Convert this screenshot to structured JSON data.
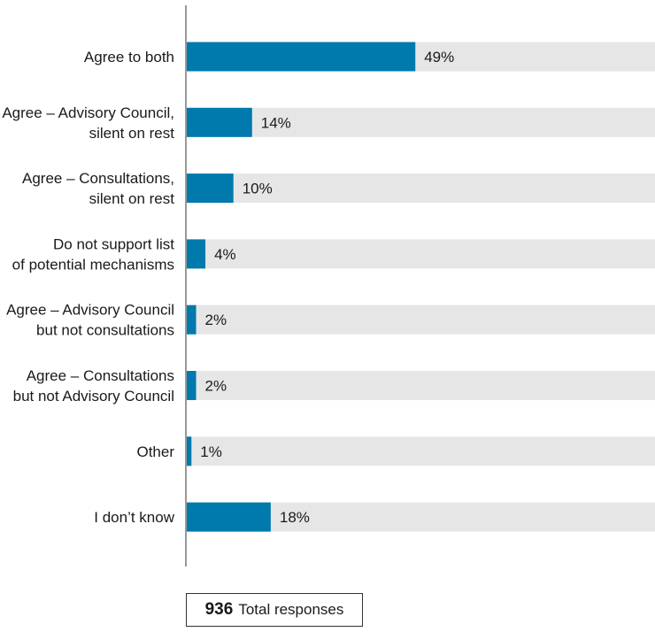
{
  "chart_data": {
    "type": "bar",
    "orientation": "horizontal",
    "categories": [
      [
        "Agree to both"
      ],
      [
        "Agree – Advisory Council,",
        "silent on rest"
      ],
      [
        "Agree – Consultations,",
        "silent on rest"
      ],
      [
        "Do not support list",
        "of potential mechanisms"
      ],
      [
        "Agree – Advisory Council",
        "but not consultations"
      ],
      [
        "Agree – Consultations",
        "but not Advisory Council"
      ],
      [
        "Other"
      ],
      [
        "I don’t know"
      ]
    ],
    "values": [
      49,
      14,
      10,
      4,
      2,
      2,
      1,
      18
    ],
    "value_labels": [
      "49%",
      "14%",
      "10%",
      "4%",
      "2%",
      "2%",
      "1%",
      "18%"
    ],
    "xlim": [
      0,
      100
    ],
    "bar_color": "#0079ad",
    "track_color": "#e6e6e6"
  },
  "total": {
    "number": "936",
    "label": "Total responses"
  }
}
